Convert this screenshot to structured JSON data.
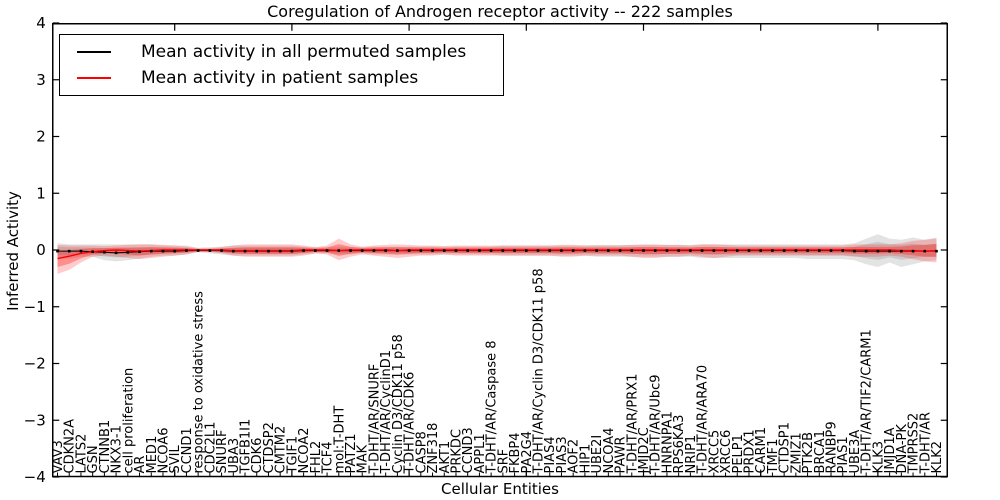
{
  "title": "Coregulation of Androgen receptor activity -- 222 samples",
  "legend": {
    "items": [
      {
        "label": "Mean activity in all permuted samples",
        "color": "#000000"
      },
      {
        "label": "Mean activity in patient samples",
        "color": "#ff0000"
      }
    ]
  },
  "axes": {
    "xlabel": "Cellular Entities",
    "ylabel": "Inferred Activity",
    "yticks": [
      4,
      3,
      2,
      1,
      0,
      -1,
      -2,
      -3,
      -4
    ],
    "ylim": [
      -4,
      4
    ]
  },
  "chart_data": {
    "type": "line",
    "title": "Coregulation of Androgen receptor activity -- 222 samples",
    "xlabel": "Cellular Entities",
    "ylabel": "Inferred Activity",
    "ylim": [
      -4,
      4
    ],
    "grid": false,
    "legend_position": "upper left",
    "categories": [
      "VAV3",
      "CDKN2A",
      "LATS2",
      "GSN",
      "CTNNB1",
      "NKX3-1",
      "cell proliferation",
      "AR",
      "MED1",
      "NCOA6",
      "SVIL",
      "CCND1",
      "response to oxidative stress",
      "CDC2L1",
      "SNURF",
      "UBA3",
      "TGFB1I1",
      "CDK6",
      "CTDSP2",
      "CMTM2",
      "TGIF1",
      "NCOA2",
      "FHL2",
      "TCF4",
      "mol:T-DHT",
      "PATZ1",
      "MAK",
      "T-DHT/AR/SNURF",
      "T-DHT/AR/CyclinD1",
      "Cyclin D3/CDK11 p58",
      "T-DHT/AR/CDK6",
      "CASP8",
      "ZNF318",
      "AKT1",
      "PRKDC",
      "CCND3",
      "APPL1",
      "T-DHT/AR/Caspase 8",
      "SRF",
      "FKBP4",
      "PA2G4",
      "T-DHT/AR/Cyclin D3/CDK11 p58",
      "PIAS4",
      "PIAS3",
      "AOF2",
      "HIP1",
      "UBE2I",
      "NCOA4",
      "PAWR",
      "T-DHT/AR/PRX1",
      "JMJD2C",
      "T-DHT/AR/Ubc9",
      "HNRNPA1",
      "RPS6KA3",
      "NRIP1",
      "T-DHT/AR/ARA70",
      "XRCC5",
      "XRCC6",
      "PELP1",
      "PRDX1",
      "CARM1",
      "TMF1",
      "CTDSP1",
      "ZMIZ1",
      "PTK2B",
      "BRCA1",
      "RANBP9",
      "PIAS1",
      "UBE3A",
      "T-DHT/AR/TIF2/CARM1",
      "KLK3",
      "JMJD1A",
      "DNA-PK",
      "TMPRSS2",
      "T-DHT/AR",
      "KLK2"
    ],
    "series": [
      {
        "name": "Mean activity in all permuted samples",
        "color": "#000000",
        "values": [
          -0.02,
          -0.02,
          -0.02,
          -0.03,
          -0.04,
          -0.05,
          -0.04,
          -0.03,
          -0.02,
          -0.02,
          -0.02,
          -0.01,
          -0.01,
          -0.01,
          -0.01,
          -0.02,
          -0.02,
          -0.02,
          -0.02,
          -0.02,
          -0.02,
          -0.01,
          -0.01,
          -0.01,
          -0.01,
          -0.01,
          -0.01,
          -0.01,
          -0.01,
          -0.01,
          -0.01,
          -0.01,
          -0.01,
          -0.01,
          -0.01,
          -0.01,
          -0.01,
          -0.01,
          -0.01,
          -0.01,
          -0.01,
          -0.01,
          -0.01,
          -0.01,
          -0.01,
          -0.01,
          -0.01,
          -0.01,
          -0.01,
          -0.01,
          -0.01,
          -0.01,
          -0.01,
          -0.01,
          -0.01,
          -0.01,
          -0.01,
          -0.01,
          -0.01,
          -0.01,
          -0.01,
          -0.01,
          -0.01,
          -0.01,
          -0.01,
          -0.01,
          -0.01,
          -0.01,
          -0.02,
          -0.02,
          -0.02,
          -0.02,
          -0.02,
          -0.02,
          -0.02,
          -0.02
        ]
      },
      {
        "name": "Mean activity in patient samples",
        "color": "#ff0000",
        "values": [
          -0.15,
          -0.11,
          -0.06,
          -0.03,
          -0.01,
          0,
          -0.01,
          -0.02,
          -0.01,
          0,
          0,
          0,
          0,
          0,
          0,
          -0.01,
          -0.01,
          -0.01,
          -0.01,
          -0.01,
          -0.01,
          0,
          0,
          0,
          -0.01,
          0,
          0,
          0,
          0,
          -0.01,
          0,
          0,
          0,
          0,
          0,
          0,
          0,
          0,
          0,
          0,
          0,
          0,
          0,
          0,
          0,
          0,
          0,
          0,
          0,
          0,
          0,
          0,
          0,
          0,
          0,
          0,
          0,
          0,
          0,
          0,
          0,
          0,
          0,
          0,
          0,
          0,
          0,
          0,
          0,
          0,
          0,
          0,
          -0.01,
          -0.01,
          -0.02,
          -0.01
        ]
      }
    ],
    "bands": [
      {
        "name": "permuted samples spread",
        "color": "#000000",
        "hi": [
          0.12,
          0.1,
          0.1,
          0.1,
          0.1,
          0.1,
          0.1,
          0.1,
          0.1,
          0.08,
          0.08,
          0.08,
          0.04,
          0.05,
          0.06,
          0.08,
          0.08,
          0.08,
          0.08,
          0.08,
          0.08,
          0.06,
          0.05,
          0.05,
          0.06,
          0.06,
          0.05,
          0.06,
          0.06,
          0.06,
          0.06,
          0.06,
          0.06,
          0.06,
          0.06,
          0.06,
          0.06,
          0.06,
          0.08,
          0.08,
          0.08,
          0.08,
          0.08,
          0.08,
          0.08,
          0.08,
          0.09,
          0.09,
          0.09,
          0.09,
          0.09,
          0.09,
          0.09,
          0.09,
          0.09,
          0.1,
          0.1,
          0.1,
          0.1,
          0.1,
          0.1,
          0.1,
          0.1,
          0.1,
          0.1,
          0.1,
          0.1,
          0.1,
          0.12,
          0.2,
          0.28,
          0.2,
          0.18,
          0.22,
          0.18,
          0.22
        ],
        "lo": [
          -0.15,
          -0.15,
          -0.12,
          -0.12,
          -0.18,
          -0.2,
          -0.18,
          -0.15,
          -0.12,
          -0.1,
          -0.1,
          -0.08,
          -0.04,
          -0.06,
          -0.08,
          -0.1,
          -0.1,
          -0.1,
          -0.1,
          -0.1,
          -0.1,
          -0.08,
          -0.06,
          -0.06,
          -0.08,
          -0.08,
          -0.06,
          -0.08,
          -0.08,
          -0.08,
          -0.08,
          -0.08,
          -0.08,
          -0.08,
          -0.08,
          -0.08,
          -0.08,
          -0.08,
          -0.1,
          -0.1,
          -0.1,
          -0.1,
          -0.1,
          -0.1,
          -0.1,
          -0.1,
          -0.12,
          -0.12,
          -0.12,
          -0.12,
          -0.12,
          -0.12,
          -0.12,
          -0.12,
          -0.12,
          -0.14,
          -0.14,
          -0.14,
          -0.14,
          -0.14,
          -0.14,
          -0.14,
          -0.14,
          -0.14,
          -0.16,
          -0.16,
          -0.16,
          -0.16,
          -0.18,
          -0.25,
          -0.3,
          -0.22,
          -0.3,
          -0.25,
          -0.2,
          -0.18
        ]
      },
      {
        "name": "patient samples spread",
        "color": "#ff0000",
        "hi": [
          0.09,
          0.08,
          0.08,
          0.08,
          0.07,
          0.08,
          0.09,
          0.1,
          0.1,
          0.09,
          0.08,
          0.06,
          0.03,
          0.03,
          0.05,
          0.08,
          0.1,
          0.1,
          0.1,
          0.1,
          0.1,
          0.08,
          0.05,
          0.08,
          0.2,
          0.1,
          0.06,
          0.08,
          0.09,
          0.1,
          0.09,
          0.08,
          0.08,
          0.07,
          0.08,
          0.08,
          0.08,
          0.08,
          0.08,
          0.08,
          0.08,
          0.08,
          0.08,
          0.09,
          0.09,
          0.08,
          0.08,
          0.08,
          0.08,
          0.09,
          0.1,
          0.1,
          0.09,
          0.09,
          0.08,
          0.1,
          0.1,
          0.09,
          0.08,
          0.08,
          0.08,
          0.08,
          0.08,
          0.08,
          0.08,
          0.08,
          0.08,
          0.08,
          0.1,
          0.1,
          0.1,
          0.1,
          0.12,
          0.16,
          0.18,
          0.2
        ],
        "lo": [
          -0.42,
          -0.35,
          -0.22,
          -0.12,
          -0.1,
          -0.12,
          -0.14,
          -0.16,
          -0.14,
          -0.12,
          -0.1,
          -0.08,
          -0.03,
          -0.03,
          -0.06,
          -0.1,
          -0.12,
          -0.12,
          -0.12,
          -0.12,
          -0.12,
          -0.1,
          -0.06,
          -0.08,
          -0.18,
          -0.12,
          -0.08,
          -0.1,
          -0.12,
          -0.14,
          -0.12,
          -0.1,
          -0.1,
          -0.08,
          -0.1,
          -0.1,
          -0.1,
          -0.1,
          -0.1,
          -0.1,
          -0.1,
          -0.1,
          -0.1,
          -0.12,
          -0.12,
          -0.1,
          -0.1,
          -0.1,
          -0.1,
          -0.12,
          -0.14,
          -0.14,
          -0.12,
          -0.12,
          -0.1,
          -0.12,
          -0.14,
          -0.12,
          -0.1,
          -0.1,
          -0.1,
          -0.1,
          -0.1,
          -0.1,
          -0.1,
          -0.1,
          -0.1,
          -0.1,
          -0.12,
          -0.12,
          -0.12,
          -0.1,
          -0.12,
          -0.16,
          -0.2,
          -0.22
        ]
      }
    ]
  }
}
